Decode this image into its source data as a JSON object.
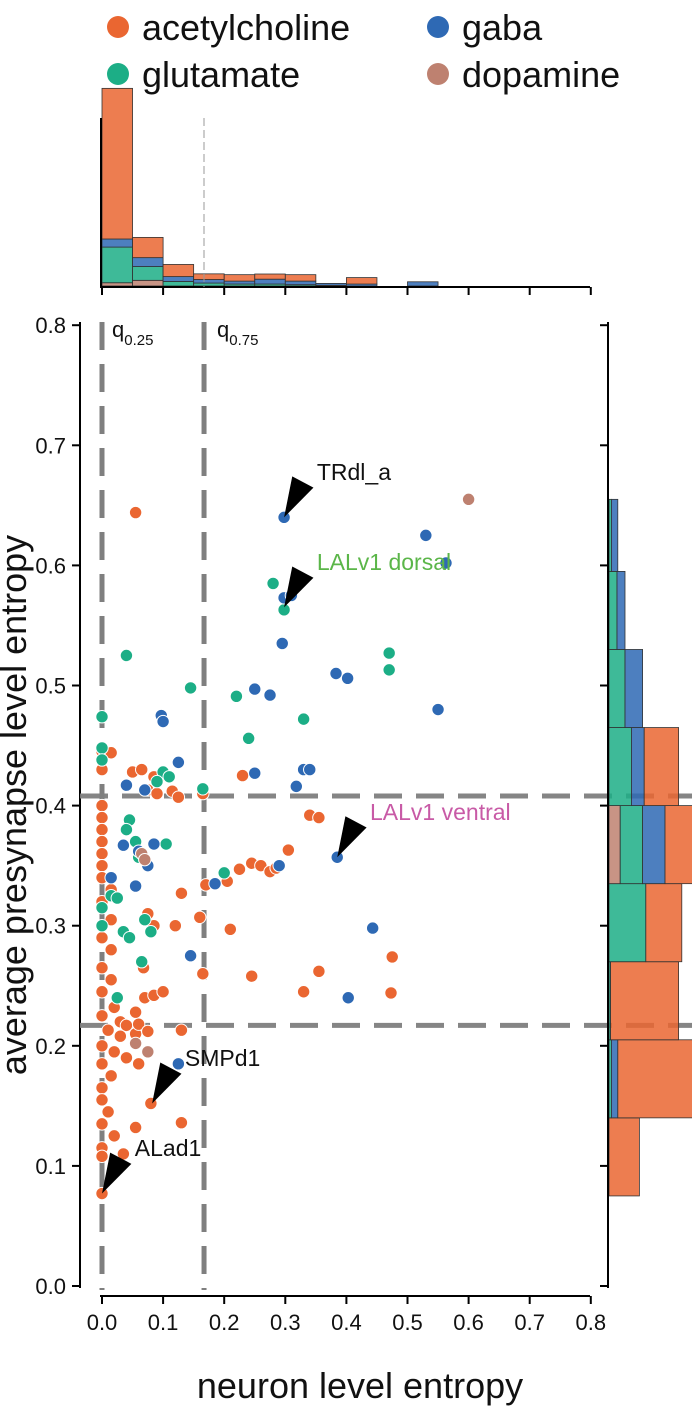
{
  "colors": {
    "acetylcholine": "#EA6631",
    "gaba": "#2E69B4",
    "glutamate": "#1CAE86",
    "dopamine": "#BE8170",
    "quantile_line": "#7F7F7F",
    "arrow": "#000000",
    "lalv1_dorsal_label": "#5BB649",
    "lalv1_ventral_label": "#C85AA6"
  },
  "chart_data": {
    "type": "scatter",
    "title": "",
    "xlabel": "neuron level entropy",
    "ylabel": "average presynapse level entropy",
    "xlim": [
      0.0,
      0.8
    ],
    "ylim": [
      0.0,
      0.8
    ],
    "xticks": [
      "0.0",
      "0.1",
      "0.2",
      "0.3",
      "0.4",
      "0.5",
      "0.6",
      "0.7",
      "0.8"
    ],
    "yticks": [
      "0.0",
      "0.1",
      "0.2",
      "0.3",
      "0.4",
      "0.5",
      "0.6",
      "0.7",
      "0.8"
    ],
    "legend": {
      "position": "top",
      "entries": [
        {
          "label": "acetylcholine",
          "key": "acetylcholine"
        },
        {
          "label": "gaba",
          "key": "gaba"
        },
        {
          "label": "glutamate",
          "key": "glutamate"
        },
        {
          "label": "dopamine",
          "key": "dopamine"
        }
      ]
    },
    "quantiles": {
      "x": [
        {
          "base": "q",
          "sub": "0.25",
          "value": 0.0
        },
        {
          "base": "q",
          "sub": "0.75",
          "value": 0.167
        }
      ],
      "y": [
        {
          "value": 0.217
        },
        {
          "value": 0.408
        }
      ]
    },
    "annotations": [
      {
        "label": "TRdl_a",
        "x": 0.298,
        "y": 0.64,
        "colorKey": "black"
      },
      {
        "label": "LALv1 dorsal",
        "x": 0.298,
        "y": 0.565,
        "colorKey": "lalv1_dorsal_label"
      },
      {
        "label": "LALv1 ventral",
        "x": 0.385,
        "y": 0.357,
        "colorKey": "lalv1_ventral_label"
      },
      {
        "label": "SMPd1",
        "x": 0.082,
        "y": 0.152,
        "colorKey": "black"
      },
      {
        "label": "ALad1",
        "x": 0.0,
        "y": 0.077,
        "colorKey": "black"
      }
    ],
    "series": [
      {
        "name": "acetylcholine",
        "points": [
          [
            0.055,
            0.644
          ],
          [
            0.0,
            0.445
          ],
          [
            0.015,
            0.444
          ],
          [
            0.0,
            0.43
          ],
          [
            0.05,
            0.428
          ],
          [
            0.065,
            0.43
          ],
          [
            0.085,
            0.424
          ],
          [
            0.105,
            0.425
          ],
          [
            0.075,
            0.413
          ],
          [
            0.09,
            0.41
          ],
          [
            0.115,
            0.412
          ],
          [
            0.125,
            0.407
          ],
          [
            0.165,
            0.41
          ],
          [
            0.23,
            0.425
          ],
          [
            0.0,
            0.4
          ],
          [
            0.0,
            0.39
          ],
          [
            0.0,
            0.38
          ],
          [
            0.0,
            0.37
          ],
          [
            0.0,
            0.36
          ],
          [
            0.0,
            0.35
          ],
          [
            0.0,
            0.34
          ],
          [
            0.015,
            0.33
          ],
          [
            0.0,
            0.32
          ],
          [
            0.015,
            0.305
          ],
          [
            0.0,
            0.29
          ],
          [
            0.015,
            0.28
          ],
          [
            0.0,
            0.265
          ],
          [
            0.015,
            0.255
          ],
          [
            0.0,
            0.245
          ],
          [
            0.02,
            0.232
          ],
          [
            0.0,
            0.225
          ],
          [
            0.03,
            0.22
          ],
          [
            0.01,
            0.213
          ],
          [
            0.04,
            0.217
          ],
          [
            0.03,
            0.208
          ],
          [
            0.055,
            0.21
          ],
          [
            0.06,
            0.218
          ],
          [
            0.075,
            0.212
          ],
          [
            0.0,
            0.2
          ],
          [
            0.02,
            0.195
          ],
          [
            0.04,
            0.19
          ],
          [
            0.06,
            0.185
          ],
          [
            0.0,
            0.185
          ],
          [
            0.015,
            0.175
          ],
          [
            0.0,
            0.165
          ],
          [
            0.0,
            0.155
          ],
          [
            0.01,
            0.145
          ],
          [
            0.0,
            0.135
          ],
          [
            0.02,
            0.125
          ],
          [
            0.0,
            0.115
          ],
          [
            0.0,
            0.108
          ],
          [
            0.035,
            0.11
          ],
          [
            0.055,
            0.132
          ],
          [
            0.07,
            0.24
          ],
          [
            0.085,
            0.242
          ],
          [
            0.1,
            0.245
          ],
          [
            0.055,
            0.228
          ],
          [
            0.068,
            0.265
          ],
          [
            0.075,
            0.31
          ],
          [
            0.085,
            0.3
          ],
          [
            0.13,
            0.213
          ],
          [
            0.13,
            0.136
          ],
          [
            0.16,
            0.307
          ],
          [
            0.17,
            0.334
          ],
          [
            0.165,
            0.26
          ],
          [
            0.12,
            0.3
          ],
          [
            0.13,
            0.327
          ],
          [
            0.205,
            0.337
          ],
          [
            0.21,
            0.297
          ],
          [
            0.225,
            0.347
          ],
          [
            0.245,
            0.352
          ],
          [
            0.26,
            0.35
          ],
          [
            0.275,
            0.345
          ],
          [
            0.285,
            0.348
          ],
          [
            0.305,
            0.363
          ],
          [
            0.34,
            0.392
          ],
          [
            0.355,
            0.39
          ],
          [
            0.385,
            0.357
          ],
          [
            0.245,
            0.258
          ],
          [
            0.33,
            0.245
          ],
          [
            0.355,
            0.262
          ],
          [
            0.475,
            0.274
          ],
          [
            0.473,
            0.244
          ],
          [
            0.08,
            0.152
          ],
          [
            0.0,
            0.077
          ]
        ]
      },
      {
        "name": "gaba",
        "points": [
          [
            0.298,
            0.64
          ],
          [
            0.53,
            0.625
          ],
          [
            0.563,
            0.602
          ],
          [
            0.298,
            0.573
          ],
          [
            0.31,
            0.575
          ],
          [
            0.295,
            0.535
          ],
          [
            0.383,
            0.51
          ],
          [
            0.402,
            0.506
          ],
          [
            0.25,
            0.497
          ],
          [
            0.275,
            0.492
          ],
          [
            0.55,
            0.48
          ],
          [
            0.097,
            0.475
          ],
          [
            0.1,
            0.47
          ],
          [
            0.125,
            0.436
          ],
          [
            0.25,
            0.427
          ],
          [
            0.33,
            0.43
          ],
          [
            0.34,
            0.43
          ],
          [
            0.318,
            0.416
          ],
          [
            0.04,
            0.417
          ],
          [
            0.07,
            0.413
          ],
          [
            0.035,
            0.367
          ],
          [
            0.085,
            0.368
          ],
          [
            0.06,
            0.362
          ],
          [
            0.075,
            0.35
          ],
          [
            0.055,
            0.333
          ],
          [
            0.015,
            0.34
          ],
          [
            0.185,
            0.335
          ],
          [
            0.29,
            0.35
          ],
          [
            0.385,
            0.357
          ],
          [
            0.145,
            0.275
          ],
          [
            0.443,
            0.298
          ],
          [
            0.403,
            0.24
          ],
          [
            0.125,
            0.185
          ]
        ]
      },
      {
        "name": "glutamate",
        "points": [
          [
            0.28,
            0.585
          ],
          [
            0.298,
            0.563
          ],
          [
            0.04,
            0.525
          ],
          [
            0.47,
            0.527
          ],
          [
            0.47,
            0.513
          ],
          [
            0.145,
            0.498
          ],
          [
            0.22,
            0.491
          ],
          [
            0.0,
            0.474
          ],
          [
            0.33,
            0.472
          ],
          [
            0.24,
            0.456
          ],
          [
            0.0,
            0.448
          ],
          [
            0.0,
            0.438
          ],
          [
            0.1,
            0.428
          ],
          [
            0.11,
            0.424
          ],
          [
            0.09,
            0.42
          ],
          [
            0.165,
            0.414
          ],
          [
            0.34,
            0.43
          ],
          [
            0.045,
            0.388
          ],
          [
            0.04,
            0.38
          ],
          [
            0.055,
            0.37
          ],
          [
            0.06,
            0.357
          ],
          [
            0.105,
            0.368
          ],
          [
            0.2,
            0.344
          ],
          [
            0.015,
            0.325
          ],
          [
            0.025,
            0.323
          ],
          [
            0.0,
            0.315
          ],
          [
            0.0,
            0.3
          ],
          [
            0.035,
            0.295
          ],
          [
            0.045,
            0.29
          ],
          [
            0.07,
            0.305
          ],
          [
            0.08,
            0.295
          ],
          [
            0.065,
            0.27
          ],
          [
            0.025,
            0.24
          ]
        ]
      },
      {
        "name": "dopamine",
        "points": [
          [
            0.6,
            0.655
          ],
          [
            0.065,
            0.36
          ],
          [
            0.07,
            0.355
          ],
          [
            0.055,
            0.202
          ],
          [
            0.075,
            0.195
          ]
        ]
      }
    ],
    "marginal_x_hist": {
      "bin_edges": [
        0.0,
        0.05,
        0.1,
        0.15,
        0.2,
        0.25,
        0.3,
        0.35,
        0.4,
        0.45,
        0.5,
        0.55
      ],
      "stacks": [
        {
          "key": "dopamine",
          "heights": [
            0.02,
            0.035,
            0.0,
            0.0,
            0.0,
            0.0,
            0.0,
            0.0,
            0.0,
            0.0,
            0.0
          ]
        },
        {
          "key": "glutamate",
          "heights": [
            0.22,
            0.085,
            0.028,
            0.018,
            0.012,
            0.012,
            0.008,
            0.004,
            0.0,
            0.0,
            0.0
          ]
        },
        {
          "key": "gaba",
          "heights": [
            0.05,
            0.055,
            0.03,
            0.022,
            0.018,
            0.03,
            0.022,
            0.012,
            0.012,
            0.0,
            0.026
          ]
        },
        {
          "key": "acetylcholine",
          "heights": [
            0.93,
            0.125,
            0.075,
            0.035,
            0.04,
            0.032,
            0.04,
            0.0,
            0.04,
            0.0,
            0.0
          ]
        }
      ],
      "max": 1.0
    },
    "marginal_y_hist": {
      "bins": [
        {
          "lo": 0.075,
          "hi": 0.14,
          "acetylcholine": 0.38,
          "gaba": 0.0,
          "glutamate": 0.0,
          "dopamine": 0.0
        },
        {
          "lo": 0.14,
          "hi": 0.205,
          "acetylcholine": 1.0,
          "gaba": 0.08,
          "glutamate": 0.03,
          "dopamine": 0.0
        },
        {
          "lo": 0.205,
          "hi": 0.27,
          "acetylcholine": 0.85,
          "gaba": 0.0,
          "glutamate": 0.02,
          "dopamine": 0.0
        },
        {
          "lo": 0.27,
          "hi": 0.335,
          "acetylcholine": 0.45,
          "gaba": 0.0,
          "glutamate": 0.46,
          "dopamine": 0.0
        },
        {
          "lo": 0.335,
          "hi": 0.4,
          "acetylcholine": 0.56,
          "gaba": 0.28,
          "glutamate": 0.28,
          "dopamine": 0.14
        },
        {
          "lo": 0.4,
          "hi": 0.465,
          "acetylcholine": 0.43,
          "gaba": 0.16,
          "glutamate": 0.28,
          "dopamine": 0.0
        },
        {
          "lo": 0.465,
          "hi": 0.53,
          "acetylcholine": 0.0,
          "gaba": 0.22,
          "glutamate": 0.2,
          "dopamine": 0.0
        },
        {
          "lo": 0.53,
          "hi": 0.595,
          "acetylcholine": 0.0,
          "gaba": 0.1,
          "glutamate": 0.1,
          "dopamine": 0.0
        },
        {
          "lo": 0.595,
          "hi": 0.655,
          "acetylcholine": 0.0,
          "gaba": 0.08,
          "glutamate": 0.03,
          "dopamine": 0.0
        }
      ],
      "stack_order": [
        "dopamine",
        "glutamate",
        "gaba",
        "acetylcholine"
      ]
    }
  }
}
